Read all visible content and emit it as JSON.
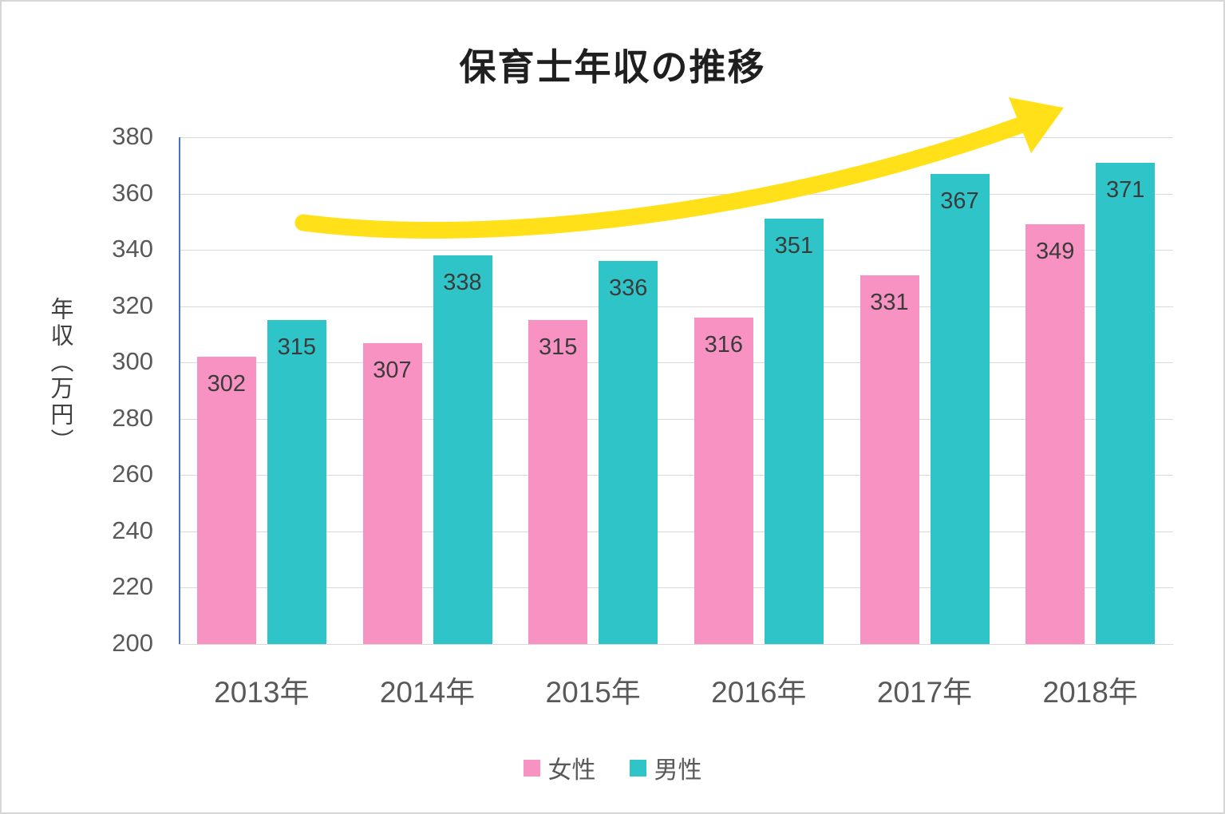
{
  "title": "保育士年収の推移",
  "chart_data": {
    "type": "bar",
    "title": "保育士年収の推移",
    "categories": [
      "2013年",
      "2014年",
      "2015年",
      "2016年",
      "2017年",
      "2018年"
    ],
    "series": [
      {
        "name": "女性",
        "color": "#f892c3",
        "values": [
          302,
          307,
          315,
          316,
          331,
          349
        ]
      },
      {
        "name": "男性",
        "color": "#2fc5c8",
        "values": [
          315,
          338,
          336,
          351,
          367,
          371
        ]
      }
    ],
    "xlabel": "",
    "ylabel": "年収（万円）",
    "ylim": [
      200,
      380
    ],
    "ytick_step": 20,
    "grid": true,
    "legend_position": "bottom",
    "annotation": "upward-trend-arrow"
  },
  "colors": {
    "female_bar": "#f892c3",
    "male_bar": "#2fc5c8",
    "trend_arrow": "#ffe019",
    "gridline": "#d9d9d9",
    "axis_line": "#4472c4",
    "tick_text": "#595959",
    "data_label_text": "#3b3b3b",
    "title_text": "#1f1f1f"
  }
}
